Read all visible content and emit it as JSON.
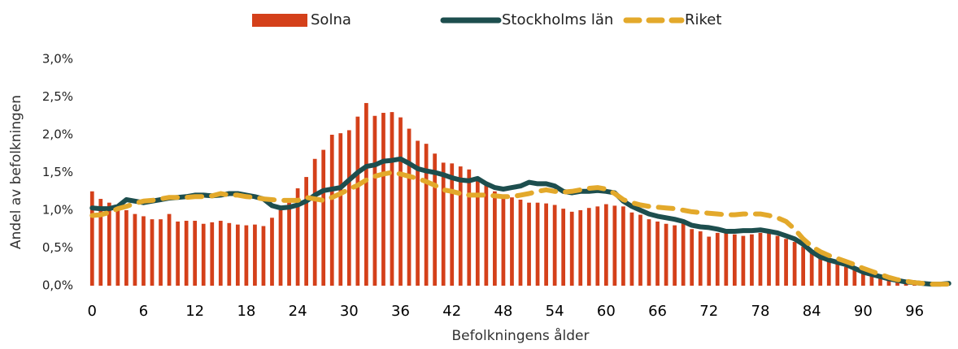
{
  "chart_data": {
    "type": "bar-line",
    "x_label": "Befolkningens ålder",
    "y_label": "Andel av befolkningen",
    "x": [
      0,
      1,
      2,
      3,
      4,
      5,
      6,
      7,
      8,
      9,
      10,
      11,
      12,
      13,
      14,
      15,
      16,
      17,
      18,
      19,
      20,
      21,
      22,
      23,
      24,
      25,
      26,
      27,
      28,
      29,
      30,
      31,
      32,
      33,
      34,
      35,
      36,
      37,
      38,
      39,
      40,
      41,
      42,
      43,
      44,
      45,
      46,
      47,
      48,
      49,
      50,
      51,
      52,
      53,
      54,
      55,
      56,
      57,
      58,
      59,
      60,
      61,
      62,
      63,
      64,
      65,
      66,
      67,
      68,
      69,
      70,
      71,
      72,
      73,
      74,
      75,
      76,
      77,
      78,
      79,
      80,
      81,
      82,
      83,
      84,
      85,
      86,
      87,
      88,
      89,
      90,
      91,
      92,
      93,
      94,
      95,
      96,
      97,
      98,
      99,
      100
    ],
    "xlim": [
      -0.5,
      100.5
    ],
    "xticks": [
      0,
      6,
      12,
      18,
      24,
      30,
      36,
      42,
      48,
      54,
      60,
      66,
      72,
      78,
      84,
      90,
      96
    ],
    "ylim": [
      0,
      3
    ],
    "yticks": [
      {
        "value": 0,
        "label": "0,0%"
      },
      {
        "value": 0.5,
        "label": "0,5%"
      },
      {
        "value": 1,
        "label": "1,0%"
      },
      {
        "value": 1.5,
        "label": "1,5%"
      },
      {
        "value": 2,
        "label": "2,0%"
      },
      {
        "value": 2.5,
        "label": "2,5%"
      },
      {
        "value": 3,
        "label": "3,0%"
      }
    ],
    "legend": "top",
    "series": [
      {
        "name": "Solna",
        "kind": "bar",
        "color": "#d4401a",
        "values": [
          1.25,
          1.15,
          1.1,
          1.05,
          1.0,
          0.95,
          0.92,
          0.88,
          0.88,
          0.95,
          0.85,
          0.86,
          0.86,
          0.82,
          0.84,
          0.86,
          0.83,
          0.81,
          0.8,
          0.81,
          0.79,
          0.9,
          1.0,
          1.1,
          1.29,
          1.44,
          1.68,
          1.8,
          2.0,
          2.02,
          2.06,
          2.24,
          2.42,
          2.25,
          2.29,
          2.3,
          2.23,
          2.08,
          1.92,
          1.88,
          1.75,
          1.63,
          1.62,
          1.58,
          1.54,
          1.42,
          1.35,
          1.25,
          1.2,
          1.17,
          1.14,
          1.1,
          1.1,
          1.09,
          1.07,
          1.02,
          0.98,
          1.0,
          1.03,
          1.05,
          1.08,
          1.06,
          1.05,
          0.97,
          0.94,
          0.88,
          0.85,
          0.82,
          0.8,
          0.84,
          0.75,
          0.72,
          0.65,
          0.7,
          0.72,
          0.68,
          0.66,
          0.68,
          0.7,
          0.7,
          0.66,
          0.62,
          0.58,
          0.52,
          0.44,
          0.38,
          0.32,
          0.3,
          0.25,
          0.22,
          0.18,
          0.14,
          0.11,
          0.08,
          0.06,
          0.04,
          0.03,
          0.02,
          0.01,
          0.01,
          0.0
        ]
      },
      {
        "name": "Stockholms län",
        "kind": "line",
        "color": "#1d4e4e",
        "values": [
          1.03,
          1.02,
          1.02,
          1.05,
          1.14,
          1.12,
          1.1,
          1.12,
          1.14,
          1.16,
          1.17,
          1.18,
          1.2,
          1.2,
          1.19,
          1.2,
          1.22,
          1.22,
          1.2,
          1.18,
          1.15,
          1.06,
          1.03,
          1.04,
          1.07,
          1.12,
          1.2,
          1.26,
          1.28,
          1.3,
          1.4,
          1.5,
          1.58,
          1.6,
          1.65,
          1.66,
          1.68,
          1.62,
          1.55,
          1.52,
          1.5,
          1.47,
          1.43,
          1.4,
          1.39,
          1.42,
          1.35,
          1.3,
          1.28,
          1.3,
          1.32,
          1.37,
          1.35,
          1.35,
          1.32,
          1.25,
          1.23,
          1.25,
          1.25,
          1.26,
          1.25,
          1.23,
          1.12,
          1.05,
          1.0,
          0.95,
          0.92,
          0.9,
          0.88,
          0.85,
          0.8,
          0.78,
          0.77,
          0.75,
          0.72,
          0.72,
          0.73,
          0.73,
          0.74,
          0.72,
          0.7,
          0.66,
          0.62,
          0.55,
          0.45,
          0.38,
          0.34,
          0.31,
          0.28,
          0.23,
          0.18,
          0.15,
          0.12,
          0.09,
          0.07,
          0.05,
          0.04,
          0.03,
          0.02,
          0.02,
          0.03
        ]
      },
      {
        "name": "Riket",
        "kind": "dashed-line",
        "color": "#e3a92b",
        "values": [
          0.93,
          0.94,
          0.97,
          1.02,
          1.05,
          1.09,
          1.12,
          1.13,
          1.15,
          1.17,
          1.17,
          1.17,
          1.18,
          1.18,
          1.19,
          1.22,
          1.2,
          1.2,
          1.18,
          1.17,
          1.15,
          1.14,
          1.13,
          1.13,
          1.13,
          1.17,
          1.15,
          1.13,
          1.17,
          1.22,
          1.28,
          1.33,
          1.4,
          1.45,
          1.48,
          1.5,
          1.48,
          1.45,
          1.42,
          1.38,
          1.33,
          1.27,
          1.25,
          1.22,
          1.2,
          1.2,
          1.2,
          1.19,
          1.18,
          1.18,
          1.2,
          1.22,
          1.25,
          1.27,
          1.25,
          1.24,
          1.25,
          1.27,
          1.29,
          1.3,
          1.28,
          1.22,
          1.14,
          1.1,
          1.07,
          1.05,
          1.04,
          1.03,
          1.02,
          1.0,
          0.98,
          0.97,
          0.96,
          0.95,
          0.94,
          0.94,
          0.95,
          0.95,
          0.95,
          0.93,
          0.9,
          0.85,
          0.75,
          0.62,
          0.52,
          0.45,
          0.4,
          0.36,
          0.32,
          0.28,
          0.23,
          0.19,
          0.15,
          0.11,
          0.08,
          0.06,
          0.04,
          0.03,
          0.02,
          0.02,
          0.02
        ]
      }
    ]
  }
}
